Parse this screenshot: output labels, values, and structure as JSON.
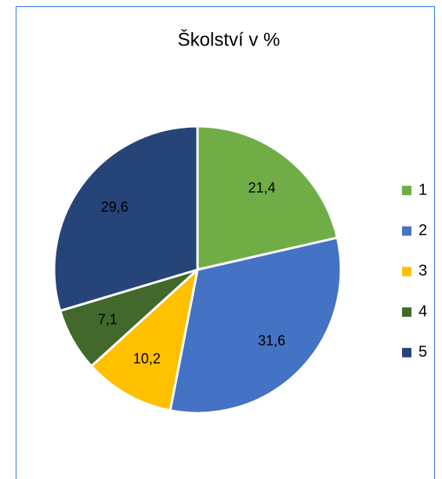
{
  "chart_data": {
    "type": "pie",
    "title": "Školství v %",
    "categories": [
      "1",
      "2",
      "3",
      "4",
      "5"
    ],
    "values": [
      21.4,
      31.6,
      10.2,
      7.1,
      29.6
    ],
    "value_labels": [
      "21,4",
      "31,6",
      "10,2",
      "7,1",
      "29,6"
    ],
    "colors": [
      "#70ad47",
      "#4472c4",
      "#ffc000",
      "#43682b",
      "#264478"
    ],
    "legend": "right"
  }
}
